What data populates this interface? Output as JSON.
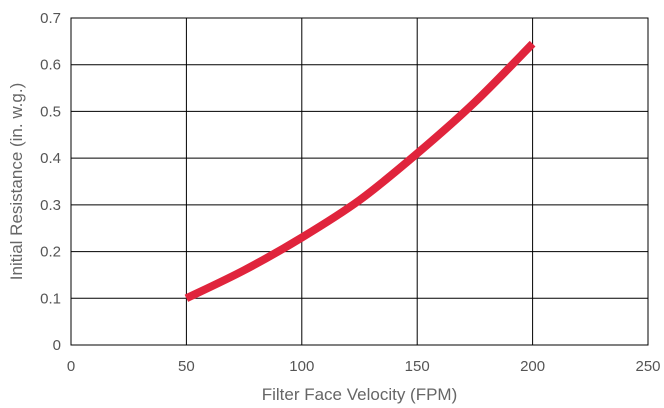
{
  "chart_data": {
    "type": "line",
    "title": "",
    "xlabel": "Filter Face Velocity (FPM)",
    "ylabel": "Initial Resistance (in. w.g.)",
    "xlim": [
      0,
      250
    ],
    "ylim": [
      0,
      0.7
    ],
    "xticks": [
      "0",
      "50",
      "100",
      "150",
      "200",
      "250"
    ],
    "yticks": [
      "0",
      "0.1",
      "0.2",
      "0.3",
      "0.4",
      "0.5",
      "0.6",
      "0.7"
    ],
    "grid": true,
    "legend": "none",
    "series": [
      {
        "color": "#e0243c",
        "x": [
          50,
          75,
          100,
          125,
          150,
          175,
          200
        ],
        "y": [
          0.1,
          0.16,
          0.23,
          0.31,
          0.41,
          0.52,
          0.645
        ]
      }
    ]
  }
}
